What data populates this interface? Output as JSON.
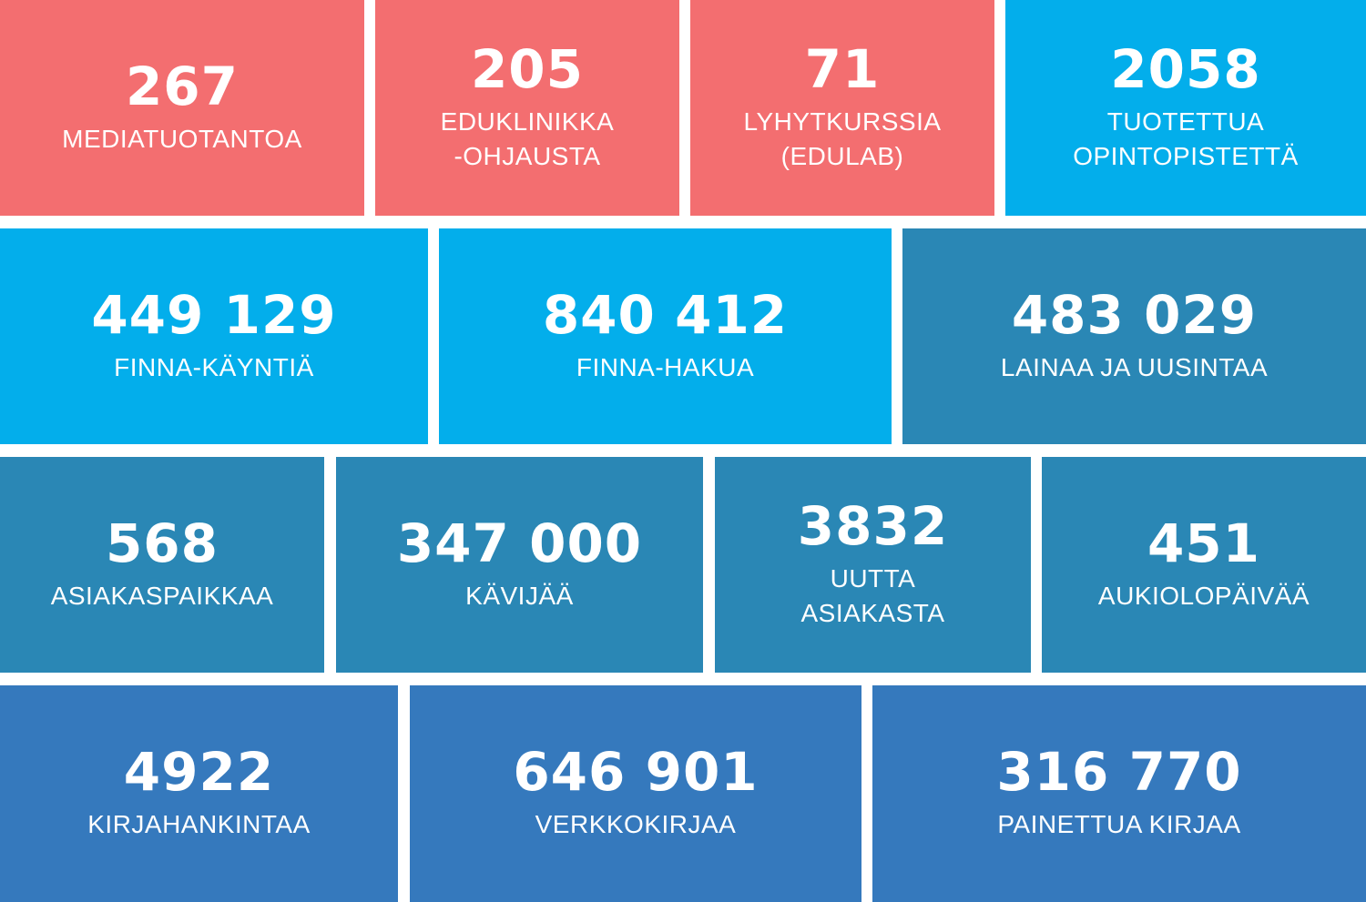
{
  "tiles": [
    {
      "value": "267",
      "label": "MEDIATUOTANTOA"
    },
    {
      "value": "205",
      "label": "EDUKLINIKKA\n-OHJAUSTA"
    },
    {
      "value": "71",
      "label": "LYHYTKURSSIA\n(EDULAB)"
    },
    {
      "value": "2058",
      "label": "TUOTETTUA\nOPINTOPISTETTÄ"
    },
    {
      "value": "449 129",
      "label": "FINNA-KÄYNTIÄ"
    },
    {
      "value": "840 412",
      "label": "FINNA-HAKUA"
    },
    {
      "value": "483 029",
      "label": "LAINAA JA UUSINTAA"
    },
    {
      "value": "568",
      "label": "ASIAKASPAIKKAA"
    },
    {
      "value": "347 000",
      "label": "KÄVIJÄÄ"
    },
    {
      "value": "3832",
      "label": "UUTTA\nASIAKASTA"
    },
    {
      "value": "451",
      "label": "AUKIOLOPÄIVÄÄ"
    },
    {
      "value": "4922",
      "label": "KIRJAHANKINTAA"
    },
    {
      "value": "646 901",
      "label": "VERKKOKIRJAA"
    },
    {
      "value": "316 770",
      "label": "PAINETTUA KIRJAA"
    }
  ],
  "colors": {
    "red": "#f36e70",
    "cyan": "#03aeeb",
    "teal": "#2a87b5",
    "blue": "#3579bd"
  }
}
